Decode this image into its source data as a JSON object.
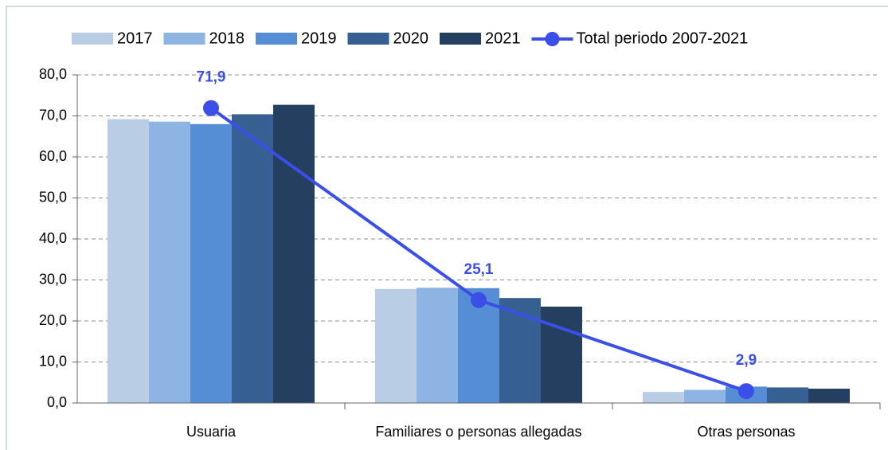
{
  "chart_data": {
    "type": "bar_line",
    "categories": [
      "Usuaria",
      "Familiares o personas allegadas",
      "Otras personas"
    ],
    "series": [
      {
        "name": "2017",
        "color": "#b9cde5",
        "values": [
          69.2,
          27.8,
          2.7
        ]
      },
      {
        "name": "2018",
        "color": "#8eb4e3",
        "values": [
          68.6,
          28.1,
          3.2
        ]
      },
      {
        "name": "2019",
        "color": "#558ed5",
        "values": [
          68.0,
          28.0,
          4.0
        ]
      },
      {
        "name": "2020",
        "color": "#376092",
        "values": [
          70.4,
          25.6,
          3.8
        ]
      },
      {
        "name": "2021",
        "color": "#243f60",
        "values": [
          72.7,
          23.5,
          3.5
        ]
      }
    ],
    "line": {
      "name": "Total periodo 2007-2021",
      "color": "#3b4fe8",
      "values": [
        71.9,
        25.1,
        2.9
      ],
      "value_labels": [
        "71,9",
        "25,1",
        "2,9"
      ]
    },
    "ylim": [
      0,
      80
    ],
    "yticks": [
      {
        "value": 0,
        "label": "0,0"
      },
      {
        "value": 10,
        "label": "10,0"
      },
      {
        "value": 20,
        "label": "20,0"
      },
      {
        "value": 30,
        "label": "30,0"
      },
      {
        "value": 40,
        "label": "40,0"
      },
      {
        "value": 50,
        "label": "50,0"
      },
      {
        "value": 60,
        "label": "60,0"
      },
      {
        "value": 70,
        "label": "70,0"
      },
      {
        "value": 80,
        "label": "80,0"
      }
    ],
    "grid": true,
    "legend": "top"
  }
}
